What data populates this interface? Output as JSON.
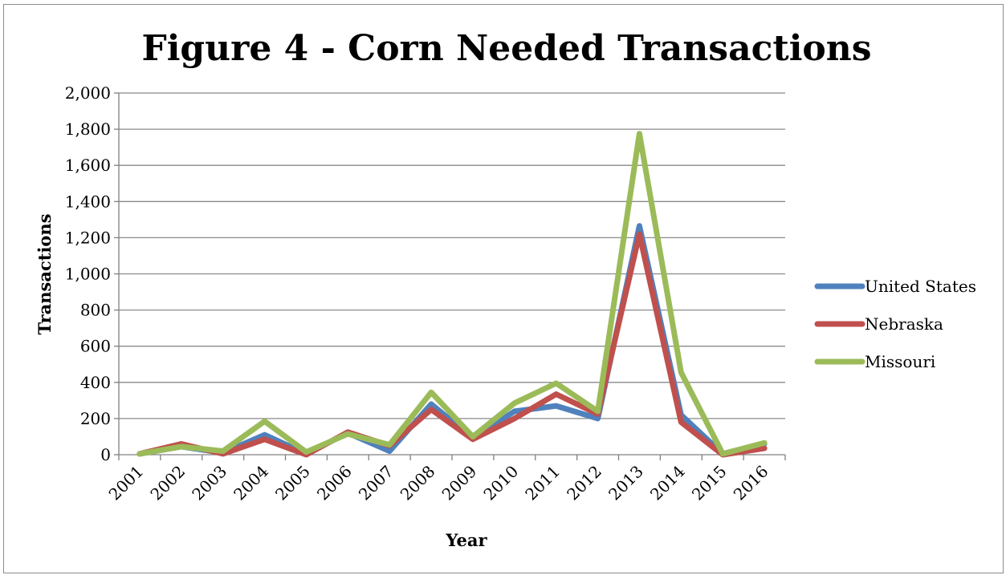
{
  "chart_data": {
    "type": "line",
    "title": "Figure 4 - Corn Needed Transactions",
    "xlabel": "Year",
    "ylabel": "Transactions",
    "ylim": [
      0,
      2000
    ],
    "ytick_step": 200,
    "categories": [
      "2001",
      "2002",
      "2003",
      "2004",
      "2005",
      "2006",
      "2007",
      "2008",
      "2009",
      "2010",
      "2011",
      "2012",
      "2013",
      "2014",
      "2015",
      "2016"
    ],
    "series": [
      {
        "name": "United States",
        "color": "#4f81bd",
        "values": [
          5,
          45,
          10,
          110,
          5,
          120,
          20,
          280,
          90,
          240,
          270,
          200,
          1265,
          220,
          5,
          60
        ]
      },
      {
        "name": "Nebraska",
        "color": "#c0504d",
        "values": [
          5,
          60,
          5,
          85,
          0,
          125,
          50,
          250,
          85,
          200,
          335,
          225,
          1220,
          180,
          0,
          35
        ]
      },
      {
        "name": "Missouri",
        "color": "#9bbb59",
        "values": [
          5,
          45,
          20,
          185,
          15,
          115,
          55,
          345,
          100,
          285,
          395,
          240,
          1775,
          455,
          5,
          65
        ]
      }
    ],
    "grid": true,
    "legend_position": "right"
  }
}
